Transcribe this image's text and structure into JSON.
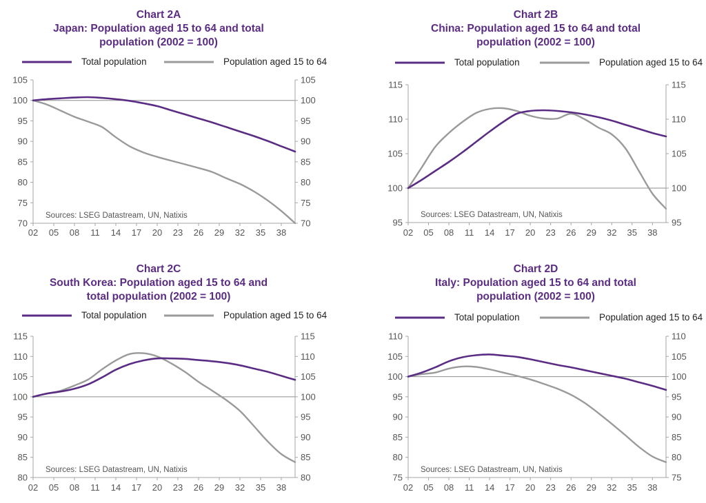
{
  "colors": {
    "total": "#5b2c83",
    "working": "#9a9a9a",
    "axis": "#a6a6a6",
    "title": "#5b2c83"
  },
  "legend": {
    "total": "Total population",
    "working": "Population aged 15 to 64"
  },
  "source": "Sources: LSEG Datastream, UN, Natixis",
  "chart_data": [
    {
      "type": "line",
      "title_lines": [
        "Chart 2A",
        "Japan: Population aged 15 to 64 and total",
        "population (2002 = 100)"
      ],
      "x_ticks": [
        "02",
        "05",
        "08",
        "11",
        "14",
        "17",
        "20",
        "23",
        "26",
        "29",
        "32",
        "35",
        "38"
      ],
      "xlim": [
        2002,
        2040
      ],
      "ylim": [
        70,
        105
      ],
      "y_ticks": [
        "70",
        "75",
        "80",
        "85",
        "90",
        "95",
        "100",
        "105"
      ],
      "reference": 100,
      "legend_position": "top",
      "series": [
        {
          "name": "Total population",
          "x": [
            2002,
            2004,
            2006,
            2008,
            2010,
            2012,
            2014,
            2016,
            2018,
            2020,
            2022,
            2024,
            2026,
            2028,
            2030,
            2032,
            2034,
            2036,
            2038,
            2040
          ],
          "values": [
            100,
            100.3,
            100.5,
            100.7,
            100.8,
            100.6,
            100.3,
            99.9,
            99.3,
            98.6,
            97.6,
            96.6,
            95.6,
            94.6,
            93.5,
            92.4,
            91.3,
            90.1,
            88.8,
            87.5
          ]
        },
        {
          "name": "Population aged 15 to 64",
          "x": [
            2002,
            2004,
            2006,
            2008,
            2010,
            2012,
            2014,
            2016,
            2018,
            2020,
            2022,
            2024,
            2026,
            2028,
            2030,
            2032,
            2034,
            2036,
            2038,
            2040
          ],
          "values": [
            100,
            99,
            97.5,
            96,
            94.8,
            93.5,
            91,
            88.8,
            87.3,
            86.2,
            85.3,
            84.4,
            83.5,
            82.5,
            81,
            79.6,
            77.8,
            75.6,
            73,
            70
          ]
        }
      ]
    },
    {
      "type": "line",
      "title_lines": [
        "Chart 2B",
        "China: Population aged 15 to 64 and total",
        "population (2002 = 100)"
      ],
      "x_ticks": [
        "02",
        "05",
        "08",
        "11",
        "14",
        "17",
        "20",
        "23",
        "26",
        "29",
        "32",
        "35",
        "38"
      ],
      "xlim": [
        2002,
        2040
      ],
      "ylim": [
        95,
        115
      ],
      "y_ticks": [
        "95",
        "100",
        "105",
        "110",
        "115"
      ],
      "reference": 100,
      "legend_position": "top",
      "series": [
        {
          "name": "Total population",
          "x": [
            2002,
            2004,
            2006,
            2008,
            2010,
            2012,
            2014,
            2016,
            2018,
            2020,
            2022,
            2024,
            2026,
            2028,
            2030,
            2032,
            2034,
            2036,
            2038,
            2040
          ],
          "values": [
            100,
            101.2,
            102.5,
            103.8,
            105.2,
            106.7,
            108.2,
            109.6,
            110.8,
            111.2,
            111.3,
            111.2,
            111,
            110.7,
            110.3,
            109.8,
            109.2,
            108.6,
            108,
            107.5
          ]
        },
        {
          "name": "Population aged 15 to 64",
          "x": [
            2002,
            2004,
            2006,
            2008,
            2010,
            2012,
            2014,
            2016,
            2018,
            2020,
            2022,
            2024,
            2026,
            2028,
            2030,
            2032,
            2034,
            2036,
            2038,
            2040
          ],
          "values": [
            100,
            103,
            106,
            108,
            109.6,
            110.9,
            111.5,
            111.6,
            111.2,
            110.5,
            110.1,
            110.1,
            110.8,
            110,
            108.8,
            107.8,
            105.8,
            102.5,
            99.2,
            97
          ]
        }
      ]
    },
    {
      "type": "line",
      "title_lines": [
        "Chart 2C",
        "South Korea: Population aged 15 to 64 and",
        "total population (2002 = 100)"
      ],
      "x_ticks": [
        "02",
        "05",
        "08",
        "11",
        "14",
        "17",
        "20",
        "23",
        "26",
        "29",
        "32",
        "35",
        "38"
      ],
      "xlim": [
        2002,
        2040
      ],
      "ylim": [
        80,
        115
      ],
      "y_ticks": [
        "80",
        "85",
        "90",
        "95",
        "100",
        "105",
        "110",
        "115"
      ],
      "reference": 100,
      "legend_position": "top",
      "series": [
        {
          "name": "Total population",
          "x": [
            2002,
            2004,
            2006,
            2008,
            2010,
            2012,
            2014,
            2016,
            2018,
            2020,
            2022,
            2024,
            2026,
            2028,
            2030,
            2032,
            2034,
            2036,
            2038,
            2040
          ],
          "values": [
            100,
            100.8,
            101.3,
            102,
            103.1,
            104.8,
            106.7,
            108.1,
            109,
            109.5,
            109.5,
            109.4,
            109.1,
            108.8,
            108.4,
            107.8,
            107,
            106.2,
            105.2,
            104.2
          ]
        },
        {
          "name": "Population aged 15 to 64",
          "x": [
            2002,
            2004,
            2006,
            2008,
            2010,
            2012,
            2014,
            2016,
            2018,
            2020,
            2022,
            2024,
            2026,
            2028,
            2030,
            2032,
            2034,
            2036,
            2038,
            2040
          ],
          "values": [
            100,
            100.8,
            101.5,
            102.8,
            104.3,
            106.8,
            109,
            110.6,
            110.8,
            110,
            108.3,
            106.2,
            103.7,
            101.5,
            99.2,
            96.5,
            92.8,
            89,
            85.8,
            83.8
          ]
        }
      ]
    },
    {
      "type": "line",
      "title_lines": [
        "Chart 2D",
        "Italy: Population aged 15 to 64 and total",
        "population (2002 = 100)"
      ],
      "x_ticks": [
        "02",
        "05",
        "08",
        "11",
        "14",
        "17",
        "20",
        "23",
        "26",
        "29",
        "32",
        "35",
        "38"
      ],
      "xlim": [
        2002,
        2040
      ],
      "ylim": [
        75,
        110
      ],
      "y_ticks": [
        "75",
        "80",
        "85",
        "90",
        "95",
        "100",
        "105",
        "110"
      ],
      "reference": 100,
      "legend_position": "top",
      "series": [
        {
          "name": "Total population",
          "x": [
            2002,
            2004,
            2006,
            2008,
            2010,
            2012,
            2014,
            2016,
            2018,
            2020,
            2022,
            2024,
            2026,
            2028,
            2030,
            2032,
            2034,
            2036,
            2038,
            2040
          ],
          "values": [
            100,
            101,
            102.3,
            103.8,
            104.8,
            105.3,
            105.5,
            105.2,
            104.9,
            104.3,
            103.6,
            102.9,
            102.3,
            101.6,
            100.9,
            100.2,
            99.5,
            98.6,
            97.7,
            96.7
          ]
        },
        {
          "name": "Population aged 15 to 64",
          "x": [
            2002,
            2004,
            2006,
            2008,
            2010,
            2012,
            2014,
            2016,
            2018,
            2020,
            2022,
            2024,
            2026,
            2028,
            2030,
            2032,
            2034,
            2036,
            2038,
            2040
          ],
          "values": [
            100,
            100.6,
            101,
            102,
            102.5,
            102.4,
            101.8,
            101,
            100.2,
            99.3,
            98.2,
            97,
            95.5,
            93.5,
            91,
            88.3,
            85.5,
            82.6,
            80.2,
            78.8
          ]
        }
      ]
    }
  ]
}
